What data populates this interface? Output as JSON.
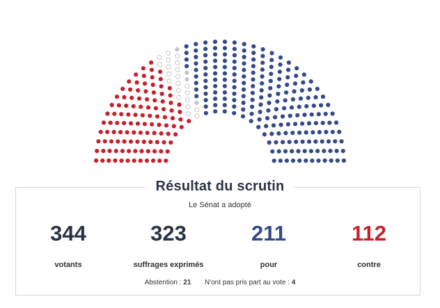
{
  "result": {
    "title": "Résultat du scrutin",
    "subtitle": "Le Sénat a adopté",
    "stats": [
      {
        "value": "344",
        "label": "votants",
        "color": "#2b3344"
      },
      {
        "value": "323",
        "label": "suffrages exprimés",
        "color": "#2b3344"
      },
      {
        "value": "211",
        "label": "pour",
        "color": "#344a86"
      },
      {
        "value": "112",
        "label": "contre",
        "color": "#c4212c"
      }
    ],
    "abstention_label": "Abstention :",
    "abstention_value": "21",
    "absent_label": "N'ont pas pris part au vote :",
    "absent_value": "4"
  },
  "colors": {
    "pour": "#344a86",
    "contre": "#c4212c",
    "abstention": "#c6c6c6",
    "absent": "#c6c6c6"
  },
  "seat_counts": {
    "contre": 112,
    "abstention": 21,
    "absent": 4,
    "pour": 211
  }
}
